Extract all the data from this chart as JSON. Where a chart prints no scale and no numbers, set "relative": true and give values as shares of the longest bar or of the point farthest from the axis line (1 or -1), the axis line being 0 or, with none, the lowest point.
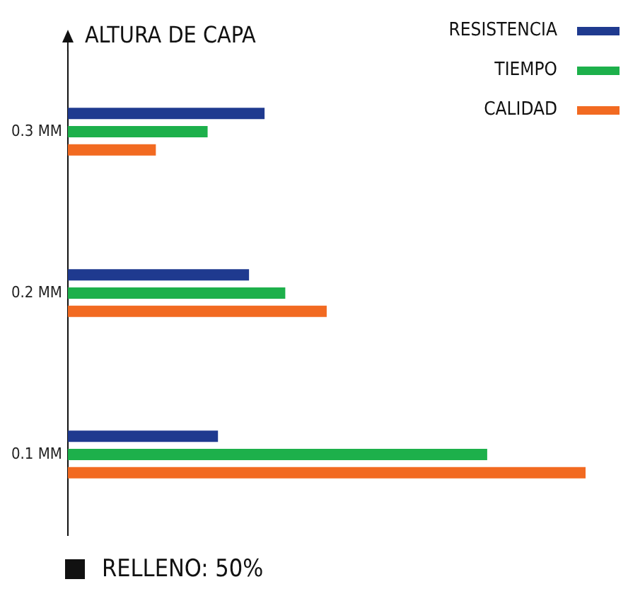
{
  "chart_data": {
    "type": "bar",
    "orientation": "horizontal",
    "relative": true,
    "ylabel": "ALTURA DE CAPA",
    "categories": [
      "0.3 MM",
      "0.2 MM",
      "0.1 MM"
    ],
    "series": [
      {
        "name": "RESISTENCIA",
        "color": "#1f3a8f",
        "values": [
          0.38,
          0.35,
          0.29
        ]
      },
      {
        "name": "TIEMPO",
        "color": "#1db04b",
        "values": [
          0.27,
          0.42,
          0.81
        ]
      },
      {
        "name": "CALIDAD",
        "color": "#f26a21",
        "values": [
          0.17,
          0.5,
          1
        ]
      }
    ],
    "legend": "top right",
    "annotations": [
      "RELLENO: 50%"
    ]
  }
}
